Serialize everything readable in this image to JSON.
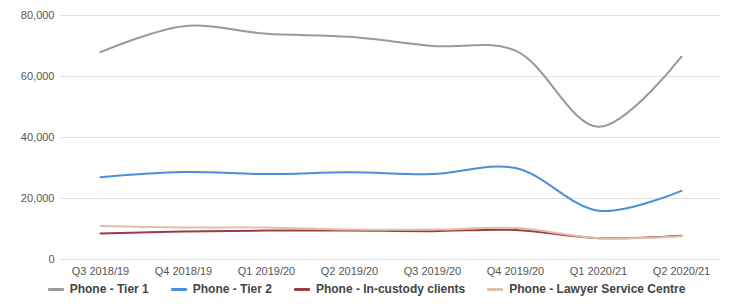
{
  "chart_data": {
    "type": "line",
    "categories": [
      "Q3 2018/19",
      "Q4 2018/19",
      "Q1 2019/20",
      "Q2 2019/20",
      "Q3 2019/20",
      "Q4 2019/20",
      "Q1 2020/21",
      "Q2 2020/21"
    ],
    "series": [
      {
        "name": "Phone - Tier 1",
        "color": "#999999",
        "values": [
          68000,
          76500,
          74000,
          73000,
          70000,
          68500,
          43500,
          66500
        ]
      },
      {
        "name": "Phone - Tier 2",
        "color": "#4a90d9",
        "values": [
          27000,
          28700,
          28000,
          28600,
          28000,
          30000,
          16000,
          22500
        ]
      },
      {
        "name": "Phone - In-custody clients",
        "color": "#9e3b44",
        "values": [
          8500,
          9200,
          9500,
          9500,
          9300,
          9700,
          7000,
          7800
        ]
      },
      {
        "name": "Phone - Lawyer Service Centre",
        "color": "#dfc0a8",
        "values": [
          11000,
          10500,
          10500,
          9800,
          9800,
          10300,
          7000,
          7600
        ]
      }
    ],
    "ylim": [
      0,
      80000
    ],
    "yticks": [
      0,
      {
        "value": 20000,
        "label": "20,000"
      },
      {
        "value": 40000,
        "label": "40,000"
      },
      {
        "value": 60000,
        "label": "60,000"
      },
      {
        "value": 80000,
        "label": "80,000"
      }
    ],
    "grid": true,
    "legend": "bottom",
    "line_style": "smooth"
  }
}
